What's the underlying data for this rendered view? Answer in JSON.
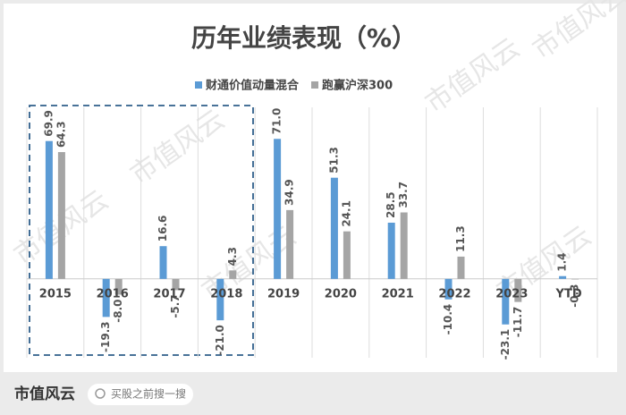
{
  "chart_data": {
    "type": "bar",
    "title": "历年业绩表现（%）",
    "categories": [
      "2015",
      "2016",
      "2017",
      "2018",
      "2019",
      "2020",
      "2021",
      "2022",
      "2023",
      "YTD"
    ],
    "series": [
      {
        "name": "财通价值动量混合",
        "color": "#5b9bd5",
        "values": [
          69.9,
          -19.3,
          16.6,
          -21.0,
          71.0,
          51.3,
          28.5,
          -10.4,
          -23.1,
          1.4
        ],
        "value_labels": [
          "69.9",
          "-19.3",
          "16.6",
          "-21.0",
          "71.0",
          "51.3",
          "28.5",
          "-10.4",
          "-23.1",
          "1.4"
        ]
      },
      {
        "name": "跑赢沪深300",
        "color": "#a5a5a5",
        "values": [
          64.3,
          -8.0,
          -5.7,
          4.3,
          34.9,
          24.1,
          33.7,
          11.3,
          -11.7,
          -0.3
        ],
        "value_labels": [
          "64.3",
          "-8.0",
          "-5.7",
          "4.3",
          "34.9",
          "24.1",
          "33.7",
          "11.3",
          "-11.7",
          "-0.3"
        ]
      }
    ],
    "ylim": [
      -40,
      87
    ],
    "legend": "top"
  },
  "footer": {
    "brand": "市值风云",
    "search": "买股之前搜一搜"
  },
  "watermark": "市值风云"
}
